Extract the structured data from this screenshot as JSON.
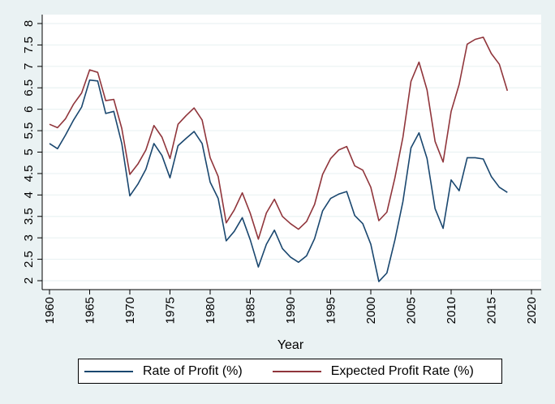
{
  "chart_data": {
    "type": "line",
    "title": "",
    "xlabel": "Year",
    "ylabel": "",
    "xlim": [
      1960,
      2020
    ],
    "ylim": [
      2,
      8
    ],
    "x_ticks": [
      "1960",
      "1965",
      "1970",
      "1975",
      "1980",
      "1985",
      "1990",
      "1995",
      "2000",
      "2005",
      "2010",
      "2015",
      "2020"
    ],
    "y_ticks": [
      "2",
      "2.5",
      "3",
      "3.5",
      "4",
      "4.5",
      "5",
      "5.5",
      "6",
      "6.5",
      "7",
      "7.5",
      "8"
    ],
    "grid": true,
    "legend_position": "bottom",
    "x": [
      1960,
      1961,
      1962,
      1963,
      1964,
      1965,
      1966,
      1967,
      1968,
      1969,
      1970,
      1971,
      1972,
      1973,
      1974,
      1975,
      1976,
      1977,
      1978,
      1979,
      1980,
      1981,
      1982,
      1983,
      1984,
      1985,
      1986,
      1987,
      1988,
      1989,
      1990,
      1991,
      1992,
      1993,
      1994,
      1995,
      1996,
      1997,
      1998,
      1999,
      2000,
      2001,
      2002,
      2003,
      2004,
      2005,
      2006,
      2007,
      2008,
      2009,
      2010,
      2011,
      2012,
      2013,
      2014,
      2015,
      2016,
      2017
    ],
    "series": [
      {
        "name": "Rate of Profit (%)",
        "color": "#1a476f",
        "values": [
          5.2,
          5.08,
          5.4,
          5.75,
          6.05,
          6.68,
          6.66,
          5.9,
          5.95,
          5.2,
          3.98,
          4.25,
          4.6,
          5.2,
          4.92,
          4.4,
          5.15,
          5.32,
          5.48,
          5.2,
          4.3,
          3.92,
          2.93,
          3.15,
          3.47,
          2.95,
          2.32,
          2.85,
          3.18,
          2.75,
          2.55,
          2.43,
          2.58,
          2.98,
          3.63,
          3.92,
          4.02,
          4.08,
          3.52,
          3.33,
          2.85,
          1.98,
          2.18,
          2.95,
          3.85,
          5.1,
          5.45,
          4.85,
          3.68,
          3.22,
          4.35,
          4.1,
          4.87,
          4.87,
          4.84,
          4.43,
          4.18,
          4.06
        ]
      },
      {
        "name": "Expected Profit Rate (%)",
        "color": "#90353b",
        "values": [
          5.65,
          5.57,
          5.78,
          6.12,
          6.38,
          6.92,
          6.86,
          6.2,
          6.23,
          5.55,
          4.48,
          4.72,
          5.05,
          5.62,
          5.35,
          4.85,
          5.65,
          5.85,
          6.03,
          5.75,
          4.87,
          4.43,
          3.35,
          3.65,
          4.05,
          3.57,
          2.97,
          3.58,
          3.9,
          3.5,
          3.33,
          3.2,
          3.38,
          3.78,
          4.48,
          4.85,
          5.05,
          5.13,
          4.68,
          4.58,
          4.18,
          3.4,
          3.6,
          4.4,
          5.35,
          6.65,
          7.1,
          6.45,
          5.25,
          4.77,
          5.95,
          6.58,
          7.52,
          7.63,
          7.68,
          7.3,
          7.05,
          6.43
        ]
      }
    ]
  }
}
